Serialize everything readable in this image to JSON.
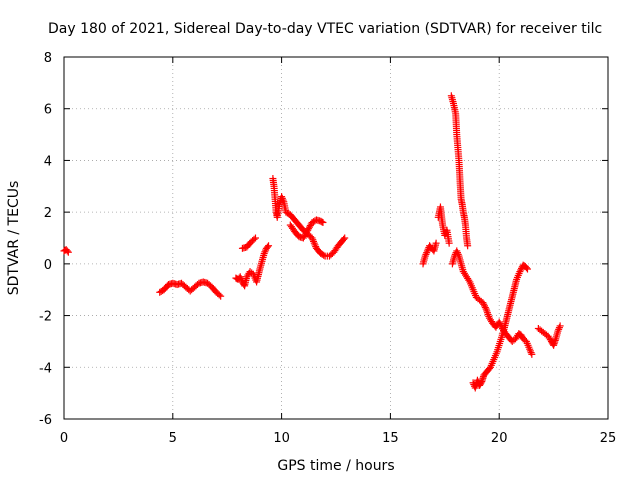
{
  "chart_data": {
    "type": "scatter",
    "title": "Day 180 of 2021, Sidereal Day-to-day VTEC variation (SDTVAR) for receiver tilc",
    "xlabel": "GPS time / hours",
    "ylabel": "SDTVAR / TECUs",
    "xlim": [
      0,
      25
    ],
    "ylim": [
      -6,
      8
    ],
    "xticks": [
      0,
      5,
      10,
      15,
      20,
      25
    ],
    "yticks": [
      -6,
      -4,
      -2,
      0,
      2,
      4,
      6,
      8
    ],
    "grid": true,
    "marker": "+",
    "color": "#ff0000",
    "series": [
      {
        "name": "SDTVAR",
        "segments": [
          [
            [
              0.0,
              0.5
            ],
            [
              0.1,
              0.55
            ],
            [
              0.2,
              0.45
            ]
          ],
          [
            [
              4.4,
              -1.1
            ],
            [
              4.6,
              -1.0
            ],
            [
              4.8,
              -0.8
            ],
            [
              5.0,
              -0.75
            ],
            [
              5.2,
              -0.8
            ],
            [
              5.4,
              -0.75
            ],
            [
              5.6,
              -0.9
            ],
            [
              5.8,
              -1.05
            ],
            [
              6.0,
              -0.9
            ],
            [
              6.2,
              -0.75
            ],
            [
              6.4,
              -0.7
            ],
            [
              6.6,
              -0.75
            ],
            [
              6.8,
              -0.9
            ],
            [
              7.0,
              -1.1
            ],
            [
              7.2,
              -1.25
            ]
          ],
          [
            [
              7.9,
              -0.55
            ],
            [
              8.0,
              -0.6
            ],
            [
              8.1,
              -0.5
            ],
            [
              8.2,
              -0.7
            ],
            [
              8.3,
              -0.85
            ],
            [
              8.4,
              -0.5
            ],
            [
              8.55,
              -0.3
            ],
            [
              8.7,
              -0.4
            ],
            [
              8.85,
              -0.7
            ],
            [
              9.0,
              -0.2
            ],
            [
              9.1,
              0.1
            ],
            [
              9.2,
              0.4
            ],
            [
              9.3,
              0.6
            ],
            [
              9.4,
              0.7
            ]
          ],
          [
            [
              8.2,
              0.6
            ],
            [
              8.4,
              0.65
            ],
            [
              8.6,
              0.85
            ],
            [
              8.8,
              1.0
            ]
          ],
          [
            [
              9.6,
              3.3
            ],
            [
              9.65,
              3.0
            ],
            [
              9.7,
              2.5
            ],
            [
              9.75,
              2.0
            ],
            [
              9.8,
              1.8
            ],
            [
              9.9,
              2.3
            ],
            [
              10.0,
              2.6
            ],
            [
              10.1,
              2.4
            ],
            [
              10.2,
              2.0
            ],
            [
              10.4,
              1.9
            ],
            [
              10.6,
              1.7
            ],
            [
              10.8,
              1.5
            ],
            [
              11.0,
              1.3
            ],
            [
              11.2,
              1.15
            ],
            [
              11.4,
              1.0
            ],
            [
              11.6,
              0.6
            ],
            [
              11.8,
              0.4
            ],
            [
              12.0,
              0.3
            ],
            [
              12.2,
              0.3
            ],
            [
              12.4,
              0.45
            ],
            [
              12.6,
              0.7
            ],
            [
              12.8,
              0.9
            ],
            [
              12.9,
              1.0
            ]
          ],
          [
            [
              10.4,
              1.5
            ],
            [
              10.6,
              1.25
            ],
            [
              10.8,
              1.05
            ],
            [
              11.0,
              1.0
            ],
            [
              11.2,
              1.3
            ],
            [
              11.4,
              1.6
            ],
            [
              11.6,
              1.7
            ],
            [
              11.8,
              1.65
            ],
            [
              11.9,
              1.6
            ]
          ],
          [
            [
              16.5,
              0.0
            ],
            [
              16.6,
              0.3
            ],
            [
              16.7,
              0.5
            ],
            [
              16.8,
              0.7
            ],
            [
              16.9,
              0.6
            ],
            [
              17.0,
              0.5
            ],
            [
              17.1,
              0.8
            ]
          ],
          [
            [
              17.2,
              1.8
            ],
            [
              17.3,
              2.2
            ],
            [
              17.4,
              1.5
            ],
            [
              17.5,
              1.1
            ],
            [
              17.6,
              1.3
            ],
            [
              17.7,
              0.8
            ]
          ],
          [
            [
              17.8,
              6.5
            ],
            [
              17.9,
              6.2
            ],
            [
              18.0,
              5.8
            ],
            [
              18.05,
              5.0
            ],
            [
              18.1,
              4.5
            ],
            [
              18.15,
              4.0
            ],
            [
              18.2,
              3.2
            ],
            [
              18.25,
              2.5
            ],
            [
              18.3,
              2.3
            ],
            [
              18.35,
              2.0
            ],
            [
              18.4,
              1.8
            ],
            [
              18.45,
              1.5
            ],
            [
              18.5,
              1.0
            ],
            [
              18.55,
              0.7
            ]
          ],
          [
            [
              17.85,
              0.0
            ],
            [
              17.95,
              0.3
            ],
            [
              18.05,
              0.5
            ],
            [
              18.15,
              0.3
            ],
            [
              18.25,
              0.0
            ],
            [
              18.35,
              -0.3
            ],
            [
              18.5,
              -0.5
            ],
            [
              18.65,
              -0.7
            ],
            [
              18.8,
              -1.0
            ],
            [
              18.95,
              -1.3
            ],
            [
              19.1,
              -1.4
            ],
            [
              19.25,
              -1.5
            ],
            [
              19.4,
              -1.75
            ],
            [
              19.55,
              -2.1
            ],
            [
              19.7,
              -2.3
            ],
            [
              19.85,
              -2.45
            ],
            [
              20.0,
              -2.25
            ],
            [
              20.15,
              -2.5
            ],
            [
              20.3,
              -2.7
            ],
            [
              20.45,
              -2.85
            ],
            [
              20.6,
              -3.0
            ],
            [
              20.75,
              -2.9
            ],
            [
              20.9,
              -2.7
            ],
            [
              21.0,
              -2.75
            ],
            [
              21.1,
              -2.9
            ],
            [
              21.25,
              -3.0
            ],
            [
              21.4,
              -3.3
            ],
            [
              21.5,
              -3.5
            ]
          ],
          [
            [
              18.8,
              -4.6
            ],
            [
              18.9,
              -4.8
            ],
            [
              19.0,
              -4.5
            ],
            [
              19.1,
              -4.7
            ],
            [
              19.2,
              -4.55
            ],
            [
              19.3,
              -4.3
            ],
            [
              19.45,
              -4.15
            ],
            [
              19.6,
              -4.0
            ],
            [
              19.75,
              -3.7
            ],
            [
              19.9,
              -3.4
            ],
            [
              20.05,
              -3.0
            ],
            [
              20.2,
              -2.6
            ],
            [
              20.35,
              -2.1
            ],
            [
              20.5,
              -1.6
            ],
            [
              20.65,
              -1.1
            ],
            [
              20.8,
              -0.6
            ],
            [
              20.95,
              -0.3
            ],
            [
              21.1,
              -0.05
            ],
            [
              21.2,
              -0.1
            ],
            [
              21.3,
              -0.2
            ]
          ],
          [
            [
              21.8,
              -2.5
            ],
            [
              21.95,
              -2.6
            ],
            [
              22.1,
              -2.7
            ],
            [
              22.25,
              -2.8
            ],
            [
              22.4,
              -3.0
            ],
            [
              22.5,
              -3.15
            ],
            [
              22.6,
              -2.9
            ],
            [
              22.7,
              -2.6
            ],
            [
              22.8,
              -2.4
            ]
          ]
        ]
      }
    ]
  }
}
